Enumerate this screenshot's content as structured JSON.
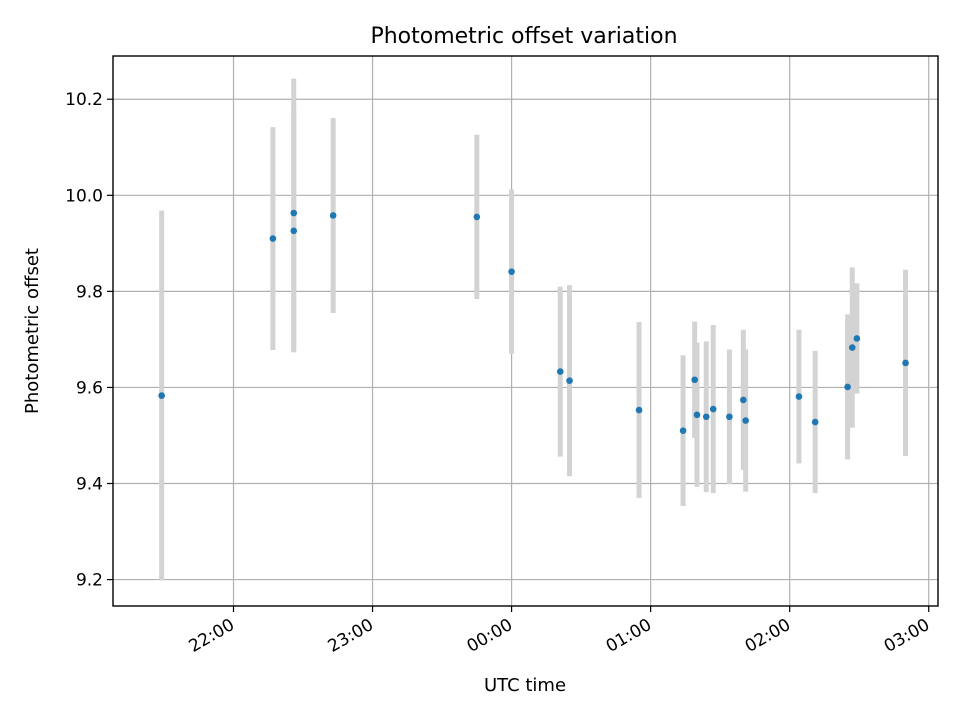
{
  "chart_data": {
    "type": "scatter",
    "title": "Photometric offset variation",
    "xlabel": "UTC time",
    "ylabel": "Photometric offset",
    "x_unit": "UTC time (HH:MM), points after 00:00 are on the following day",
    "xlim": [
      "21:08",
      "03:04"
    ],
    "ylim": [
      9.145,
      10.29
    ],
    "x_ticks": [
      "22:00",
      "23:00",
      "00:00",
      "01:00",
      "02:00",
      "03:00"
    ],
    "y_ticks": [
      9.2,
      9.4,
      9.6,
      9.8,
      10.0,
      10.2
    ],
    "grid": true,
    "legend": "none",
    "colors": {
      "point": "#1f77b4",
      "errorbar": "#d3d3d3"
    },
    "points": [
      {
        "x": "21:29",
        "y": 9.583,
        "err": 0.385
      },
      {
        "x": "22:17",
        "y": 9.91,
        "err": 0.232
      },
      {
        "x": "22:26",
        "y": 9.926,
        "err": 0.253
      },
      {
        "x": "22:26",
        "y": 9.963,
        "err": 0.28
      },
      {
        "x": "22:43",
        "y": 9.958,
        "err": 0.203
      },
      {
        "x": "23:45",
        "y": 9.955,
        "err": 0.171
      },
      {
        "x": "00:00",
        "y": 9.841,
        "err": 0.171
      },
      {
        "x": "00:21",
        "y": 9.633,
        "err": 0.177
      },
      {
        "x": "00:25",
        "y": 9.614,
        "err": 0.199
      },
      {
        "x": "00:55",
        "y": 9.553,
        "err": 0.183
      },
      {
        "x": "01:14",
        "y": 9.51,
        "err": 0.157
      },
      {
        "x": "01:19",
        "y": 9.616,
        "err": 0.121
      },
      {
        "x": "01:20",
        "y": 9.543,
        "err": 0.15
      },
      {
        "x": "01:24",
        "y": 9.539,
        "err": 0.157
      },
      {
        "x": "01:27",
        "y": 9.555,
        "err": 0.175
      },
      {
        "x": "01:34",
        "y": 9.539,
        "err": 0.14
      },
      {
        "x": "01:40",
        "y": 9.574,
        "err": 0.146
      },
      {
        "x": "01:41",
        "y": 9.531,
        "err": 0.148
      },
      {
        "x": "02:04",
        "y": 9.581,
        "err": 0.139
      },
      {
        "x": "02:11",
        "y": 9.528,
        "err": 0.148
      },
      {
        "x": "02:25",
        "y": 9.601,
        "err": 0.151
      },
      {
        "x": "02:27",
        "y": 9.683,
        "err": 0.167
      },
      {
        "x": "02:29",
        "y": 9.702,
        "err": 0.115
      },
      {
        "x": "02:50",
        "y": 9.651,
        "err": 0.194
      }
    ]
  }
}
